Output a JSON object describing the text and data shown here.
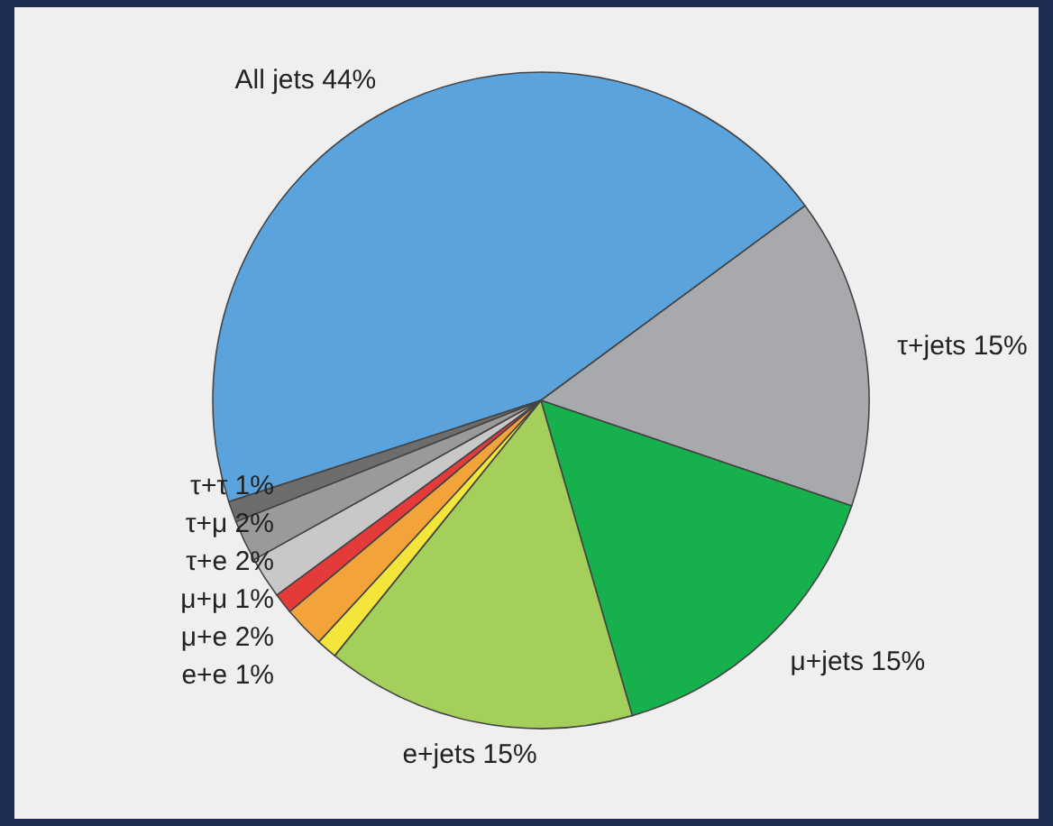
{
  "chart_data": {
    "type": "pie",
    "categories": [
      "All jets 44%",
      "τ+jets 15%",
      "μ+jets 15%",
      "e+jets 15%",
      "e+e 1%",
      "μ+e 2%",
      "μ+μ 1%",
      "τ+e 2%",
      "τ+μ 2%",
      "τ+τ 1%"
    ],
    "values": [
      44,
      15,
      15,
      15,
      1,
      2,
      1,
      2,
      2,
      1
    ],
    "colors": [
      "#5ba3dc",
      "#a7a9ac",
      "#16b04c",
      "#a3cf5a",
      "#f4e53a",
      "#f2a33a",
      "#e53a3a",
      "#c8c8c8",
      "#9a9a9a",
      "#6d6d6d"
    ]
  }
}
